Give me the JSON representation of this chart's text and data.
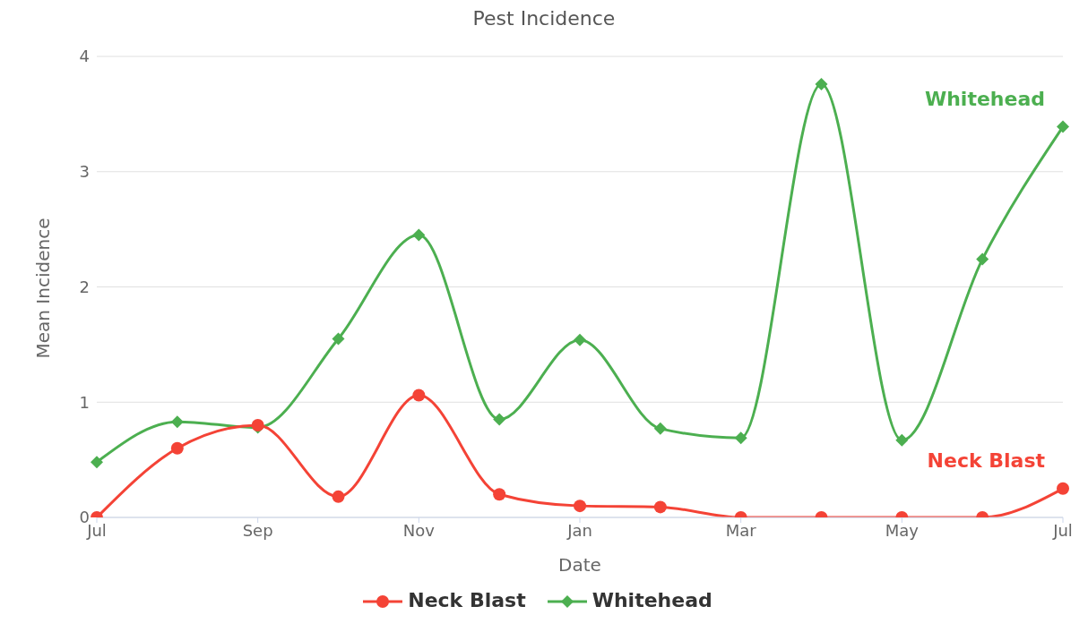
{
  "chart_data": {
    "type": "line",
    "title": "Pest Incidence",
    "xlabel": "Date",
    "ylabel": "Mean Incidence",
    "categories": [
      "Jul",
      null,
      "Sep",
      null,
      "Nov",
      null,
      "Jan",
      null,
      "Mar",
      null,
      "May",
      null,
      "Jul"
    ],
    "series": [
      {
        "name": "Neck Blast",
        "color": "#f44336",
        "marker": "circle",
        "values": [
          0,
          0.6,
          0.8,
          0.18,
          1.06,
          0.2,
          0.1,
          0.09,
          0,
          0,
          0,
          0,
          0.25
        ]
      },
      {
        "name": "Whitehead",
        "color": "#4caf50",
        "marker": "diamond",
        "values": [
          0.48,
          0.83,
          0.78,
          1.55,
          2.45,
          0.85,
          1.54,
          0.77,
          0.69,
          3.76,
          0.67,
          2.24,
          3.39
        ]
      }
    ],
    "ylim": [
      0,
      4
    ],
    "yticks": [
      0,
      1,
      2,
      3,
      4
    ],
    "grid": "y",
    "legend": "bottom",
    "line_style": "solid"
  }
}
